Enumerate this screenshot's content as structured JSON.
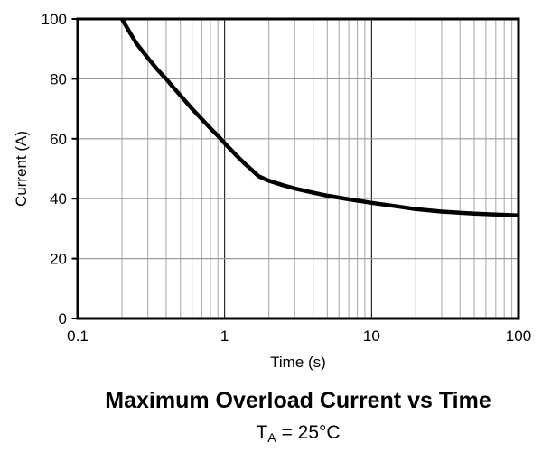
{
  "colors": {
    "background": "#ffffff",
    "text": "#000000",
    "curve": "#000000",
    "frame": "#000000",
    "grid_minor_vertical": "#b3b3b3",
    "grid_major_vertical": "#000000",
    "grid_horizontal": "#999999"
  },
  "chart_data": {
    "type": "line",
    "title": "Maximum Overload Current vs Time",
    "subtitle": {
      "pre": "T",
      "sub": "A",
      "post": " = 25°C"
    },
    "subtitle_text": "TA = 25°C",
    "xlabel": "Time (s)",
    "ylabel": "Current (A)",
    "x_scale": "log",
    "y_scale": "linear",
    "xlim": [
      0.1,
      100
    ],
    "ylim": [
      0,
      100
    ],
    "grid": {
      "minor_log_vertical": true,
      "horizontal_at": [
        20,
        40,
        60,
        80
      ]
    },
    "x_ticks": [
      {
        "value": 0.1,
        "label": "0.1"
      },
      {
        "value": 1,
        "label": "1"
      },
      {
        "value": 10,
        "label": "10"
      },
      {
        "value": 100,
        "label": "100"
      }
    ],
    "y_ticks": [
      {
        "value": 0,
        "label": "0"
      },
      {
        "value": 20,
        "label": "20"
      },
      {
        "value": 40,
        "label": "40"
      },
      {
        "value": 60,
        "label": "60"
      },
      {
        "value": 80,
        "label": "80"
      },
      {
        "value": 100,
        "label": "100"
      }
    ],
    "legend": "none",
    "series": [
      {
        "name": "maximum-overload-current",
        "color": "#000000",
        "points": [
          [
            0.2,
            100
          ],
          [
            0.22,
            96.5
          ],
          [
            0.25,
            92
          ],
          [
            0.3,
            87
          ],
          [
            0.35,
            83
          ],
          [
            0.4,
            80
          ],
          [
            0.45,
            77
          ],
          [
            0.5,
            74.5
          ],
          [
            0.6,
            70
          ],
          [
            0.7,
            66.5
          ],
          [
            0.8,
            63.5
          ],
          [
            0.9,
            61
          ],
          [
            1.0,
            58.5
          ],
          [
            1.2,
            54.5
          ],
          [
            1.35,
            52
          ],
          [
            1.5,
            50
          ],
          [
            1.7,
            47.5
          ],
          [
            2.0,
            46
          ],
          [
            2.5,
            44.5
          ],
          [
            3.0,
            43.4
          ],
          [
            4.0,
            42
          ],
          [
            5.0,
            41
          ],
          [
            7.0,
            39.8
          ],
          [
            10,
            38.6
          ],
          [
            15,
            37.4
          ],
          [
            20,
            36.5
          ],
          [
            30,
            35.7
          ],
          [
            50,
            35.0
          ],
          [
            70,
            34.7
          ],
          [
            100,
            34.4
          ]
        ]
      }
    ]
  }
}
